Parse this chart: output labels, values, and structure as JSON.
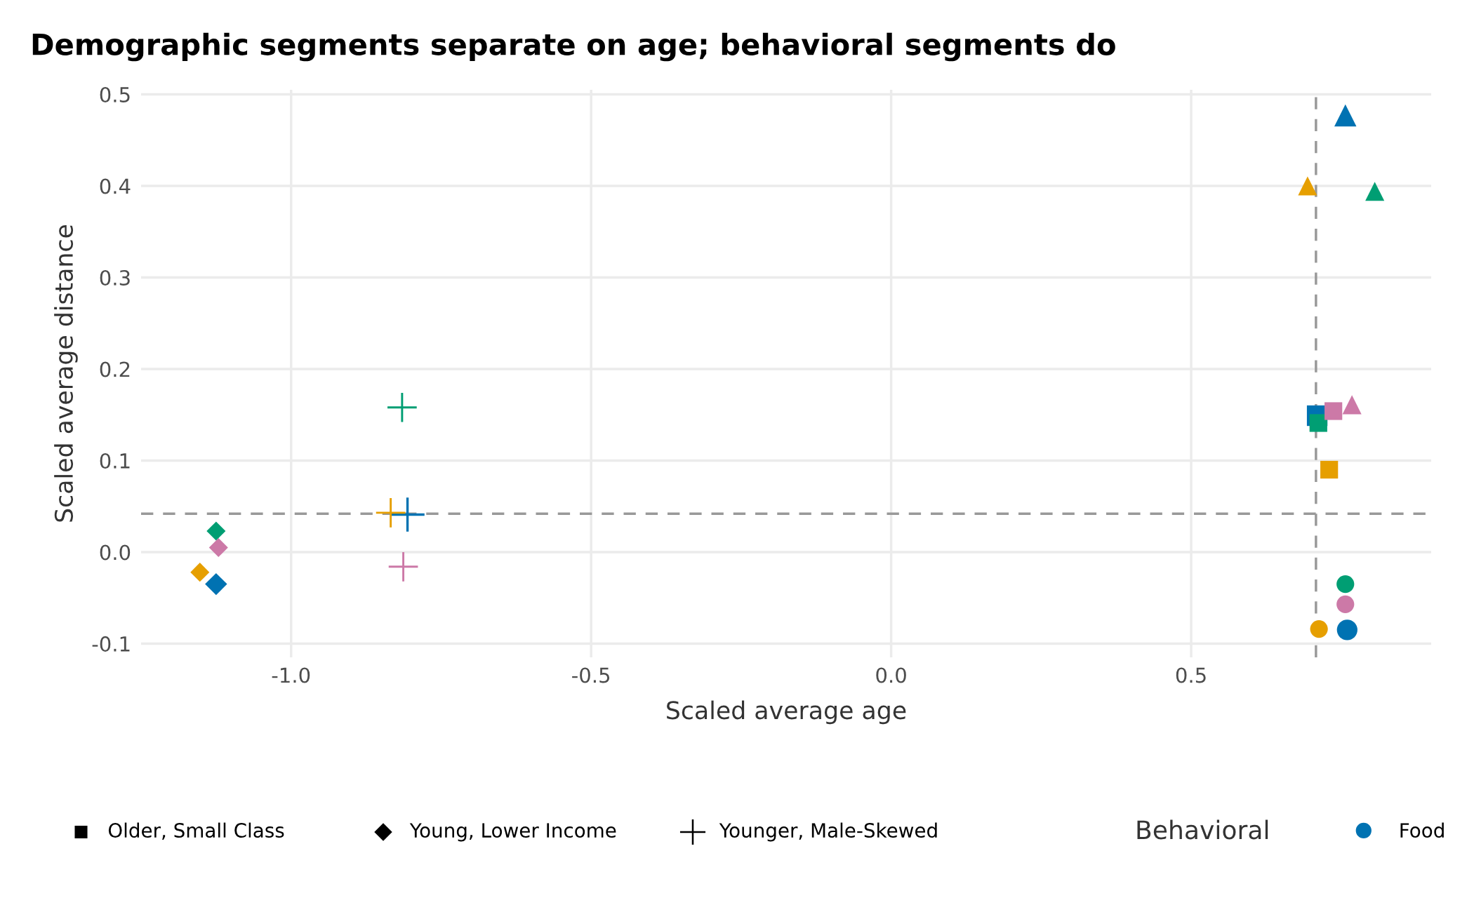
{
  "chart_data": {
    "type": "scatter",
    "title": "Demographic segments separate on age; behavioral segments do",
    "xlabel": "Scaled average age",
    "ylabel": "Scaled average distance",
    "xlim": [
      -1.25,
      0.9
    ],
    "xticks": [
      {
        "value": -1.0,
        "label": "-1.0"
      },
      {
        "value": -0.5,
        "label": "-0.5"
      },
      {
        "value": 0.0,
        "label": "0.0"
      },
      {
        "value": 0.5,
        "label": "0.5"
      }
    ],
    "ylim": [
      -0.115,
      0.505
    ],
    "yticks": [
      {
        "value": -0.1,
        "label": "-0.1"
      },
      {
        "value": 0.0,
        "label": "0.0"
      },
      {
        "value": 0.1,
        "label": "0.1"
      },
      {
        "value": 0.2,
        "label": "0.2"
      },
      {
        "value": 0.3,
        "label": "0.3"
      },
      {
        "value": 0.4,
        "label": "0.4"
      },
      {
        "value": 0.5,
        "label": "0.5"
      }
    ],
    "grid": true,
    "legend": "bottom",
    "legend_title": "Behavioral",
    "annotations": [
      "Older, Small Class",
      "Young, Lower Income",
      "Younger, Male-Skewed"
    ],
    "series": [
      {
        "name": "Food",
        "color": "#0072b2",
        "marker": [
          "circle",
          "triangle",
          "square",
          "diamond",
          "cross"
        ],
        "x": [
          0.76,
          0.757,
          0.71,
          -1.125,
          -0.806
        ],
        "values": [
          -0.085,
          0.477,
          0.149,
          -0.035,
          0.041
        ]
      },
      {
        "color": "#009e73",
        "marker": [
          "circle",
          "triangle",
          "square",
          "diamond",
          "cross"
        ],
        "x": [
          0.757,
          0.806,
          0.712,
          -1.125,
          -0.815
        ],
        "values": [
          -0.035,
          0.394,
          0.141,
          0.023,
          0.158
        ]
      },
      {
        "color": "#e69f00",
        "marker": [
          "circle",
          "triangle",
          "square",
          "diamond",
          "cross"
        ],
        "x": [
          0.713,
          0.694,
          0.73,
          -1.152,
          -0.834
        ],
        "values": [
          -0.084,
          0.4,
          0.09,
          -0.022,
          0.043
        ]
      },
      {
        "color": "#cc79a7",
        "marker": [
          "circle",
          "triangle",
          "square",
          "diamond",
          "cross"
        ],
        "x": [
          0.757,
          0.768,
          0.737,
          -1.121,
          -0.813
        ],
        "values": [
          -0.057,
          0.161,
          0.154,
          0.005,
          -0.016
        ]
      }
    ],
    "ref_lines": [
      {
        "axis": "x",
        "value": 0.708,
        "color": "#999999",
        "line_style": "dashed"
      },
      {
        "axis": "y",
        "value": 0.042,
        "color": "#999999",
        "line_style": "dashed"
      }
    ]
  }
}
